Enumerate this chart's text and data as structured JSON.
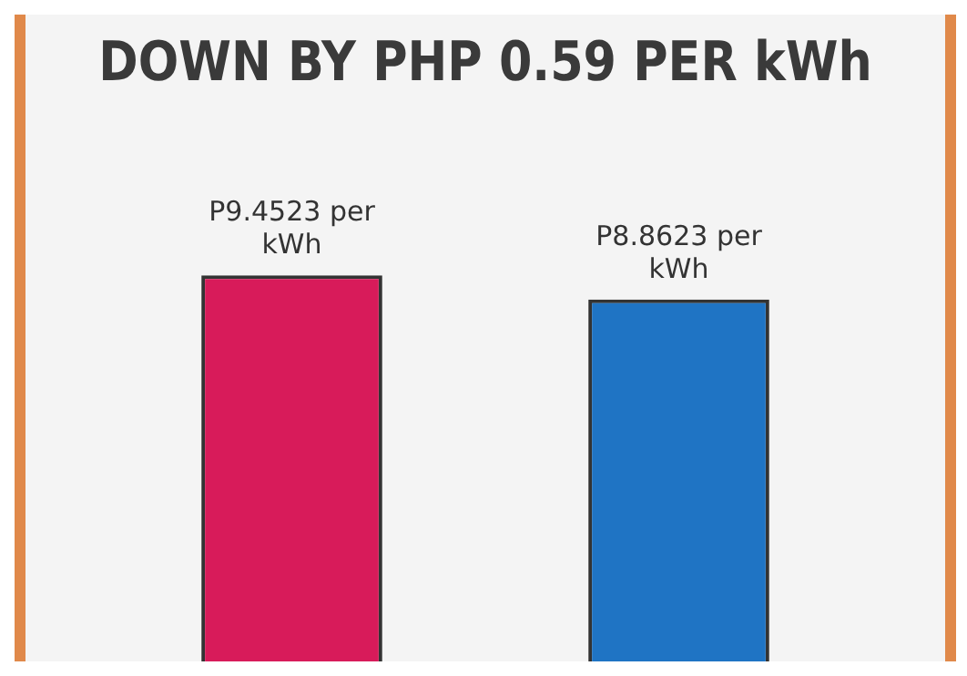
{
  "chart_data": {
    "type": "bar",
    "title": "DOWN BY PHP 0.59 PER kWh",
    "categories": [
      null,
      null
    ],
    "values": [
      9.4523,
      8.8623
    ],
    "colors": [
      "#d81b5a",
      "#1f74c4"
    ],
    "value_labels": [
      "P9.4523 per kWh",
      "P8.8623 per kWh"
    ],
    "legend": false
  }
}
